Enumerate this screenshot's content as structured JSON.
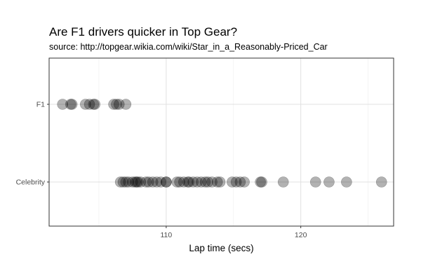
{
  "chart_data": {
    "type": "scatter",
    "title": "Are F1 drivers quicker in Top Gear?",
    "subtitle": "source: http://topgear.wikia.com/wiki/Star_in_a_Reasonably-Priced_Car",
    "xlabel": "Lap time (secs)",
    "ylabel": "",
    "xlim": [
      101.3,
      126.9
    ],
    "x_ticks": [
      110,
      120
    ],
    "x_minor": [
      105,
      115,
      125
    ],
    "categories": [
      "F1",
      "Celebrity"
    ],
    "grid": true,
    "point_color": "#000000",
    "point_opacity": 0.3,
    "series": [
      {
        "category": "F1",
        "x": [
          102.3,
          102.9,
          103.0,
          104.0,
          104.3,
          104.6,
          104.7,
          106.1,
          106.3,
          106.5,
          107.0
        ]
      },
      {
        "category": "Celebrity",
        "x": [
          106.6,
          106.8,
          107.0,
          107.2,
          107.5,
          107.7,
          107.8,
          107.9,
          108.1,
          108.5,
          108.7,
          109.0,
          109.3,
          109.6,
          110.0,
          110.0,
          110.8,
          111.0,
          111.3,
          111.6,
          111.7,
          112.0,
          112.3,
          112.6,
          112.9,
          113.1,
          113.4,
          113.8,
          114.0,
          114.9,
          115.2,
          115.5,
          115.8,
          117.0,
          117.1,
          118.7,
          121.1,
          122.1,
          123.4,
          126.0
        ]
      }
    ]
  }
}
